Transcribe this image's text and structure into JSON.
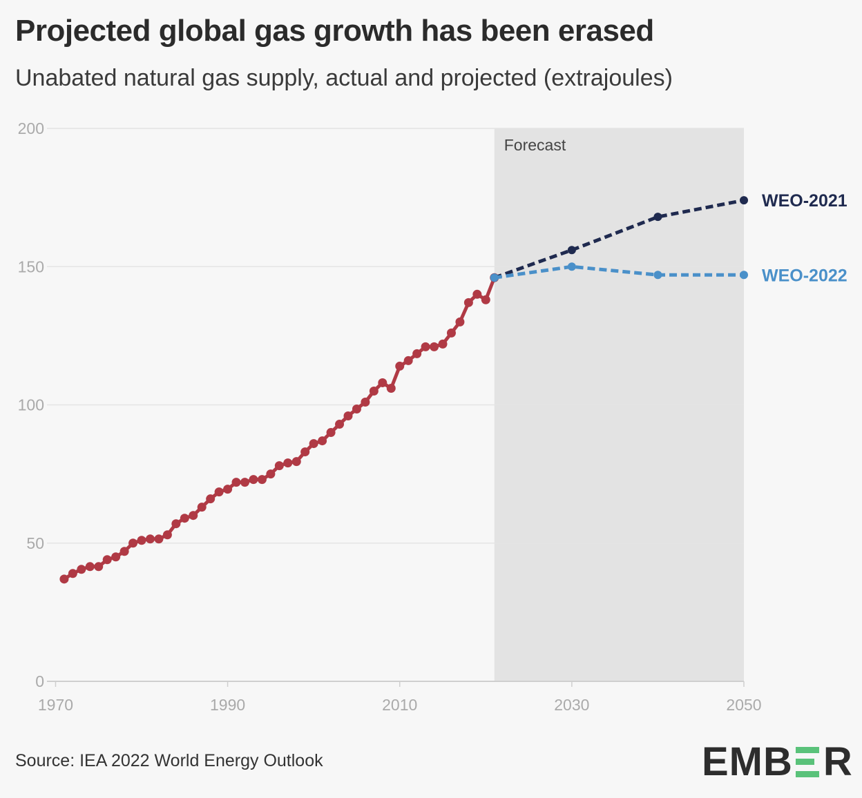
{
  "header": {
    "title": "Projected global gas growth has been erased",
    "subtitle": "Unabated natural gas supply, actual and projected (extrajoules)"
  },
  "footer": {
    "source": "Source: IEA 2022 World Energy Outlook",
    "logo_text": "EMBER",
    "logo_accent_color": "#5ac27a"
  },
  "chart_data": {
    "type": "line",
    "xlim": [
      1969,
      2050
    ],
    "ylim": [
      0,
      200
    ],
    "x_ticks": [
      1970,
      1990,
      2010,
      2030,
      2050
    ],
    "y_ticks": [
      0,
      50,
      100,
      150,
      200
    ],
    "grid": "horizontal",
    "forecast_region": {
      "label": "Forecast",
      "start": 2021,
      "end": 2050,
      "color": "#e3e3e3"
    },
    "series": [
      {
        "key": "actual",
        "color": "#b03a45",
        "style": "solid",
        "x": [
          1971,
          1972,
          1973,
          1974,
          1975,
          1976,
          1977,
          1978,
          1979,
          1980,
          1981,
          1982,
          1983,
          1984,
          1985,
          1986,
          1987,
          1988,
          1989,
          1990,
          1991,
          1992,
          1993,
          1994,
          1995,
          1996,
          1997,
          1998,
          1999,
          2000,
          2001,
          2002,
          2003,
          2004,
          2005,
          2006,
          2007,
          2008,
          2009,
          2010,
          2011,
          2012,
          2013,
          2014,
          2015,
          2016,
          2017,
          2018,
          2019,
          2020,
          2021
        ],
        "values": [
          37,
          39,
          40.5,
          41.5,
          41.5,
          44,
          45,
          47,
          50,
          51,
          51.5,
          51.5,
          53,
          57,
          59,
          60,
          63,
          66,
          68.5,
          69.5,
          72,
          72,
          73,
          73,
          75,
          78,
          79,
          79.5,
          83,
          86,
          87,
          90,
          93,
          96,
          98.5,
          101,
          105,
          108,
          106,
          114,
          116,
          118.5,
          121,
          121,
          122,
          126,
          130,
          137,
          140,
          138,
          146
        ]
      },
      {
        "name": "WEO-2021",
        "color": "#1f2a4f",
        "style": "dashed",
        "x": [
          2021,
          2030,
          2040,
          2050
        ],
        "values": [
          146,
          156,
          168,
          174
        ]
      },
      {
        "name": "WEO-2022",
        "color": "#4a90c9",
        "style": "dashed",
        "x": [
          2021,
          2030,
          2040,
          2050
        ],
        "values": [
          146,
          150,
          147,
          147
        ]
      }
    ]
  }
}
